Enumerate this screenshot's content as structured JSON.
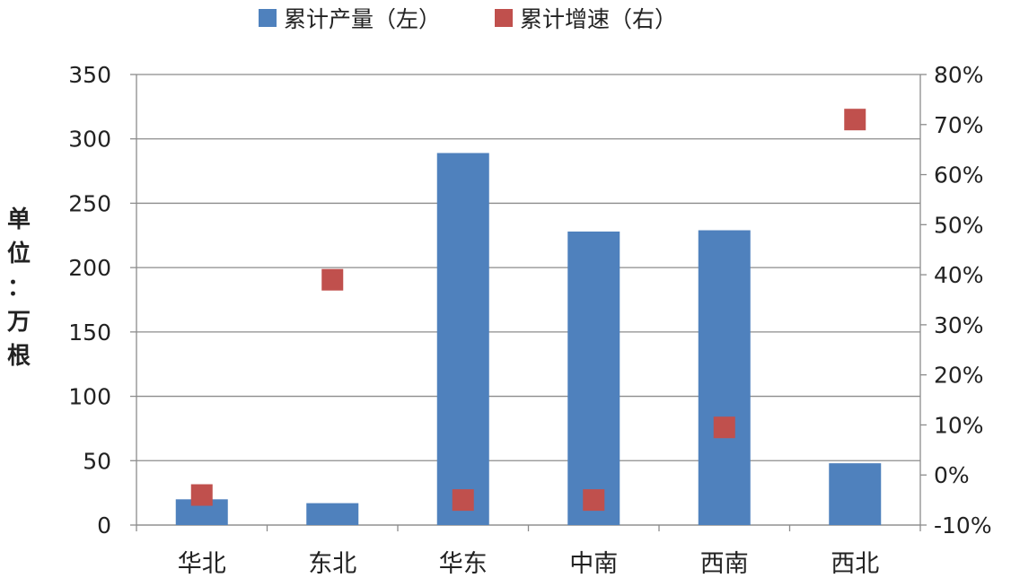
{
  "chart_data": {
    "type": "bar",
    "categories": [
      "华北",
      "东北",
      "华东",
      "中南",
      "西南",
      "西北"
    ],
    "series": [
      {
        "name": "累计产量（左）",
        "type": "bar",
        "axis": "left",
        "color": "#4f81bd",
        "values": [
          20,
          17,
          289,
          228,
          229,
          48
        ]
      },
      {
        "name": "累计增速（右）",
        "type": "scatter",
        "axis": "right",
        "color": "#c0504d",
        "values": [
          -0.04,
          0.39,
          -0.05,
          -0.05,
          0.095,
          0.71
        ]
      }
    ],
    "ylabel": [
      "单",
      "位",
      "：",
      "万",
      "根"
    ],
    "ylim_left": [
      0,
      350
    ],
    "yticks_left": [
      "0",
      "50",
      "100",
      "150",
      "200",
      "250",
      "300",
      "350"
    ],
    "ylim_right": [
      -0.1,
      0.8
    ],
    "yticks_right": [
      "-10%",
      "0%",
      "10%",
      "20%",
      "30%",
      "40%",
      "50%",
      "60%",
      "70%",
      "80%"
    ],
    "grid": true,
    "legend_position": "top"
  }
}
